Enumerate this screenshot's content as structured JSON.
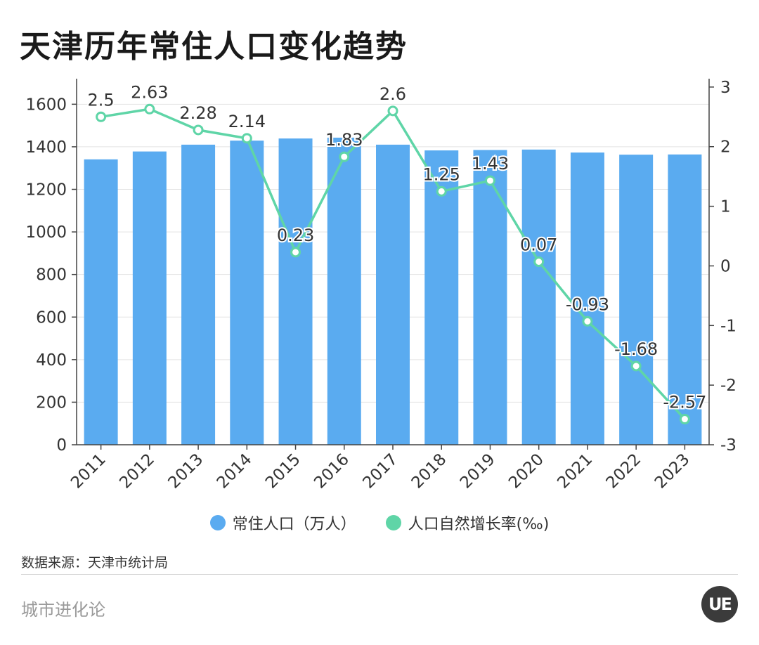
{
  "title": "天津历年常住人口变化趋势",
  "source": "数据来源：天津市统计局",
  "brand": "城市进化论",
  "logo_text": "UE",
  "colors": {
    "bar": "#5aabf0",
    "line": "#5fd5a7",
    "axis": "#444444",
    "grid": "#e3e3e3",
    "text": "#333333"
  },
  "chart_data": {
    "type": "bar+line",
    "categories": [
      "2011",
      "2012",
      "2013",
      "2014",
      "2015",
      "2016",
      "2017",
      "2018",
      "2019",
      "2020",
      "2021",
      "2022",
      "2023"
    ],
    "series": [
      {
        "name": "常住人口（万人）",
        "type": "bar",
        "axis": "left",
        "values": [
          1341,
          1378,
          1410,
          1429,
          1439,
          1443,
          1410,
          1383,
          1385,
          1387,
          1373,
          1363,
          1364
        ]
      },
      {
        "name": "人口自然增长率(‰)",
        "type": "line",
        "axis": "right",
        "values": [
          2.5,
          2.63,
          2.28,
          2.14,
          0.23,
          1.83,
          2.6,
          1.25,
          1.43,
          0.07,
          -0.93,
          -1.68,
          -2.57
        ]
      }
    ],
    "point_labels": [
      "2.5",
      "2.63",
      "2.28",
      "2.14",
      "0.23",
      "1.83",
      "2.6",
      "1.25",
      "1.43",
      "0.07",
      "-0.93",
      "-1.68",
      "-2.57"
    ],
    "y_left": {
      "ticks": [
        0,
        200,
        400,
        600,
        800,
        1000,
        1200,
        1400,
        1600
      ],
      "range": [
        0,
        1720
      ]
    },
    "y_right": {
      "ticks": [
        -3,
        -2,
        -1,
        0,
        1,
        2,
        3
      ],
      "range": [
        -3,
        3.14
      ]
    },
    "grid": "horizontal",
    "legend": "bottom-center"
  }
}
